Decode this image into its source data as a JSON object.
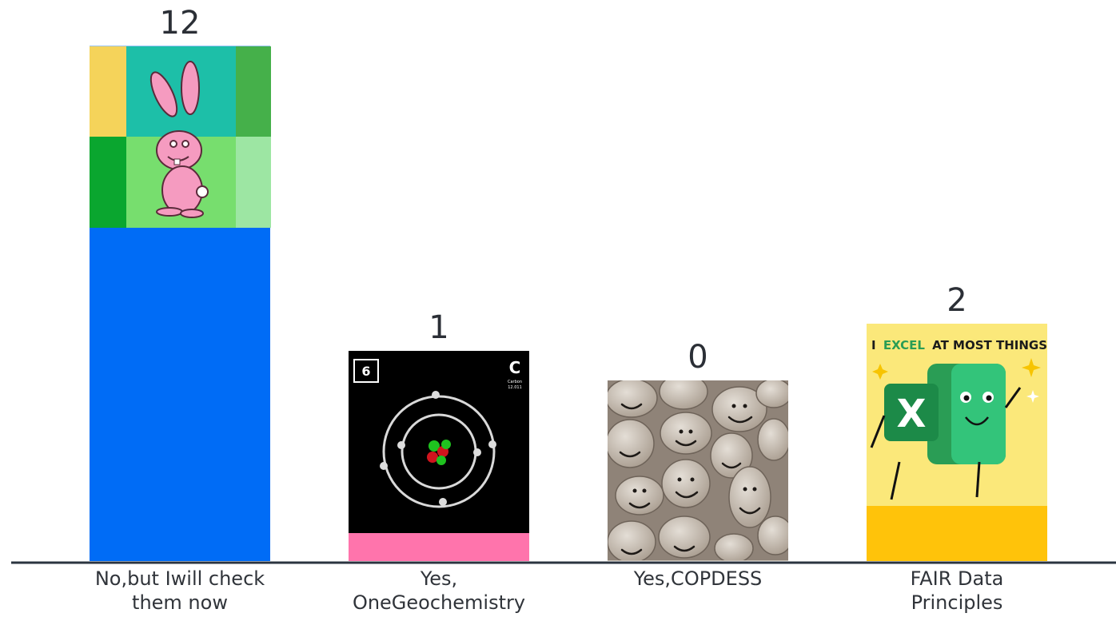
{
  "chart_data": {
    "type": "bar",
    "categories": [
      [
        "No,but Iwill check",
        "them now"
      ],
      [
        "Yes,",
        "OneGeochemistry"
      ],
      [
        "Yes,COPDESS"
      ],
      [
        "FAIR Data",
        "Principles"
      ]
    ],
    "values": [
      12,
      1,
      0,
      2
    ],
    "value_labels": [
      "12",
      "1",
      "0",
      "2"
    ],
    "bar_fill_colors": [
      "#006cf6",
      "#ff74ac",
      "#c9bfb4",
      "#ffc30a"
    ],
    "axis_color": "#2b3440"
  },
  "images": {
    "bar_1": {
      "icon": "rabbit-icon",
      "bg_colors": [
        "#f5d35a",
        "#1dbfa8",
        "#45b04a",
        "#0aa62f",
        "#77de6e",
        "#9de6a3"
      ]
    },
    "bar_2": {
      "icon": "atom-icon",
      "element_number": "6",
      "element_symbol": "C",
      "element_name": "Carbon",
      "element_mass": "12.011"
    },
    "bar_3": {
      "icon": "smiley-stones-icon"
    },
    "bar_4": {
      "icon": "excel-character-icon",
      "caption_words": [
        "I",
        "EXCEL",
        "AT MOST THINGS"
      ],
      "glyph": "X",
      "bg_color": "#fbe87a",
      "accent_color": "#2a9d55"
    }
  }
}
